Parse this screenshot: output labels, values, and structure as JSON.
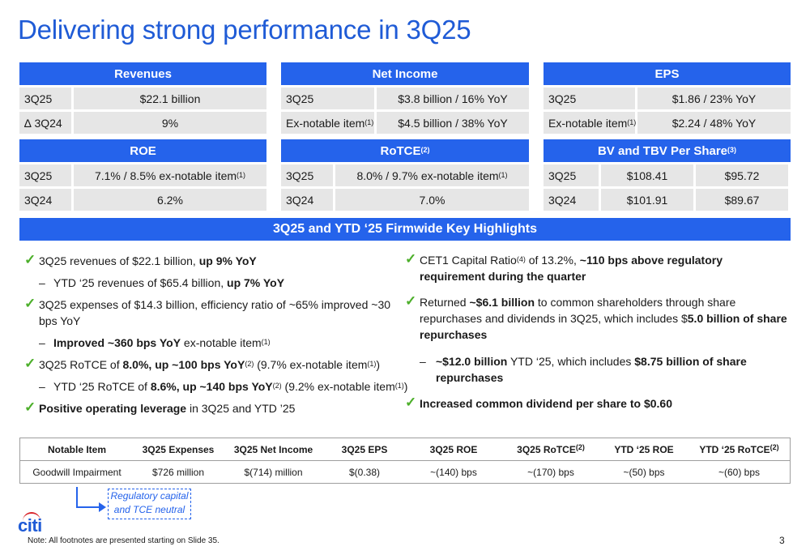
{
  "title": "Delivering strong performance in 3Q25",
  "revenues": {
    "header": "Revenues",
    "r1": [
      "3Q25",
      "$22.1 billion"
    ],
    "r2": [
      "∆ 3Q24",
      "9%"
    ]
  },
  "net_income": {
    "header": "Net Income",
    "r1": [
      "3Q25",
      "$3.8 billion / 16% YoY"
    ],
    "r2_label": "Ex-notable item",
    "r2_sup": "(1)",
    "r2_value": "$4.5 billion / 38% YoY"
  },
  "eps": {
    "header": "EPS",
    "r1": [
      "3Q25",
      "$1.86 / 23% YoY"
    ],
    "r2_label": "Ex-notable item",
    "r2_sup": "(1)",
    "r2_value": "$2.24 / 48% YoY"
  },
  "roe": {
    "header": "ROE",
    "r1_label": "3Q25",
    "r1_value": "7.1% / 8.5% ex-notable item",
    "r1_sup": "(1)",
    "r2": [
      "3Q24",
      "6.2%"
    ]
  },
  "rotce": {
    "header": "RoTCE",
    "header_sup": "(2)",
    "r1_label": "3Q25",
    "r1_value": "8.0% / 9.7% ex-notable item",
    "r1_sup": "(1)",
    "r2": [
      "3Q24",
      "7.0%"
    ]
  },
  "bv": {
    "header": "BV and TBV Per Share",
    "header_sup": "(3)",
    "r1": [
      "3Q25",
      "$108.41",
      "$95.72"
    ],
    "r2": [
      "3Q24",
      "$101.91",
      "$89.67"
    ]
  },
  "highlights_header": "3Q25 and YTD ‘25 Firmwide Key Highlights",
  "left": {
    "b1a": "3Q25 revenues of $22.1 billion, ",
    "b1b": "up 9% YoY",
    "s1a": "YTD ‘25 revenues of $65.4 billion, ",
    "s1b": "up 7% YoY",
    "b2": "3Q25 expenses of $14.3 billion, efficiency ratio of ~65% improved ~30 bps YoY",
    "s2a": "Improved ~360 bps YoY",
    "s2b": " ex-notable item",
    "s2sup": "(1)",
    "b3a": "3Q25 RoTCE of ",
    "b3b": "8.0%, up ~100 bps YoY",
    "b3sup": "(2)",
    "b3c": " (9.7% ex-notable item",
    "b3sup2": "(1)",
    "b3d": ")",
    "s3a": "YTD ‘25 RoTCE of ",
    "s3b": "8.6%, up ~140 bps YoY",
    "s3sup": "(2)",
    "s3c": " (9.2% ex-notable item",
    "s3sup2": "(1)",
    "s3d": ")",
    "b4a": "Positive operating leverage",
    "b4b": " in  3Q25 and YTD ’25"
  },
  "right": {
    "b1a": "CET1 Capital Ratio",
    "b1sup": "(4)",
    "b1b": " of 13.2%, ",
    "b1c": "~110 bps above regulatory requirement during the quarter",
    "b2a": "Returned ",
    "b2b": "~$6.1 billion",
    "b2c": " to common shareholders through share repurchases and dividends in 3Q25, which includes $",
    "b2d": "5.0 billion of share repurchases",
    "s1a": "~$12.0 billion",
    "s1b": " YTD ‘25, which includes ",
    "s1c": "$8.75 billion of share repurchases",
    "b3": "Increased common dividend per share to $0.60"
  },
  "dash": "–",
  "check": "✓",
  "notable_table": {
    "headers": [
      "Notable Item",
      "3Q25 Expenses",
      "3Q25 Net Income",
      "3Q25 EPS",
      "3Q25 ROE",
      "3Q25 RoTCE",
      "YTD ‘25 ROE",
      "YTD ‘25 RoTCE"
    ],
    "header_sup_6": "(2)",
    "header_sup_8": "(2)",
    "row": [
      "Goodwill Impairment",
      "$726 million",
      "$(714) million",
      "$(0.38)",
      "~(140) bps",
      "~(170) bps",
      "~(50) bps",
      "~(60) bps"
    ]
  },
  "callout": {
    "line1": "Regulatory capital",
    "line2": "and TCE neutral"
  },
  "logo": "citi",
  "footnote": "Note:  All footnotes are presented starting on Slide 35.",
  "page_number": "3",
  "colors": {
    "accent": "#2563eb",
    "title": "#1f5bd6",
    "check": "#4caf2a",
    "cell": "#e6e6e6",
    "logo_arc": "#d8232a"
  }
}
